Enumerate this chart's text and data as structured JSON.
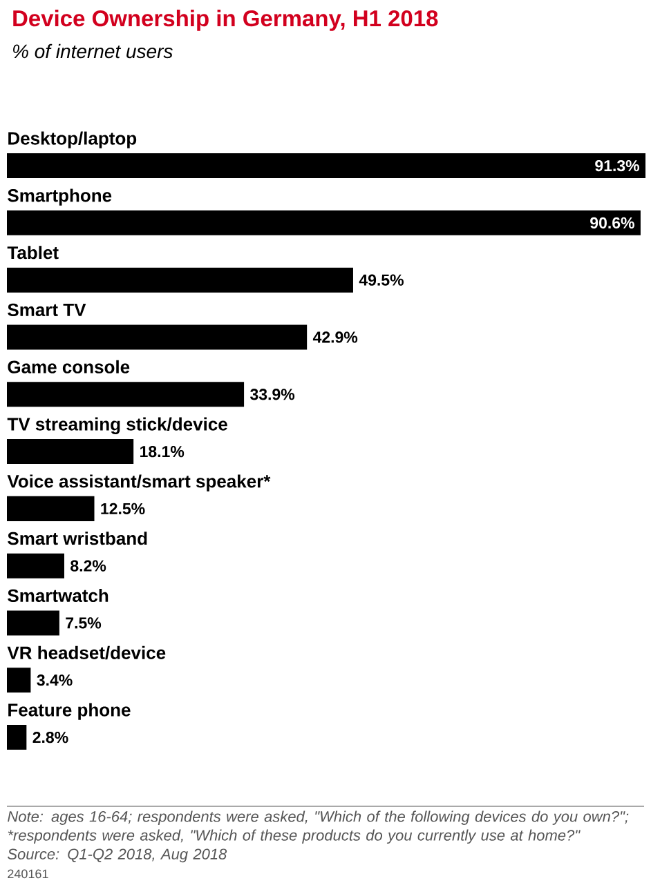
{
  "chart_data": {
    "type": "bar",
    "orientation": "horizontal",
    "title": "Device Ownership in Germany, H1 2018",
    "subtitle": "% of internet users",
    "categories": [
      "Desktop/laptop",
      "Smartphone",
      "Tablet",
      "Smart TV",
      "Game console",
      "TV streaming stick/device",
      "Voice assistant/smart speaker*",
      "Smart wristband",
      "Smartwatch",
      "VR headset/device",
      "Feature phone"
    ],
    "values": [
      91.3,
      90.6,
      49.5,
      42.9,
      33.9,
      18.1,
      12.5,
      8.2,
      7.5,
      3.4,
      2.8
    ],
    "value_labels": [
      "91.3%",
      "90.6%",
      "49.5%",
      "42.9%",
      "33.9%",
      "18.1%",
      "12.5%",
      "8.2%",
      "7.5%",
      "3.4%",
      "2.8%"
    ],
    "color": "#000000",
    "annotations": [
      "Note: ages 16-64; respondents were asked, \"Which of the following devices do you own?\"; *respondents were asked, \"Which of these products do you currently use at home?\"",
      "Source: Q1-Q2 2018, Aug 2018",
      "240161"
    ]
  }
}
